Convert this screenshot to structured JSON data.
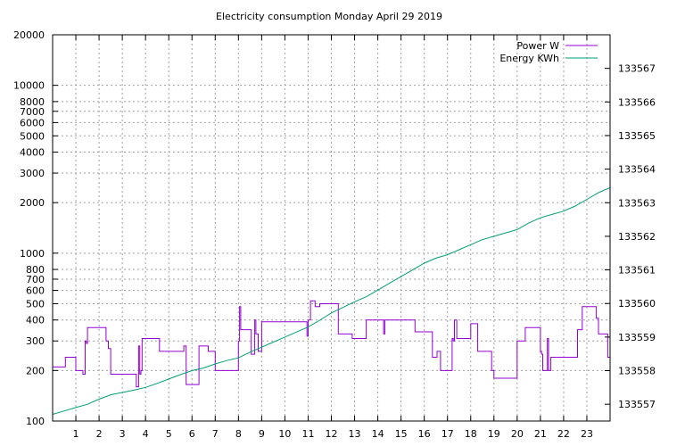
{
  "chart_data": {
    "type": "line",
    "title": "Electricity consumption Monday April 29 2019",
    "xlabel": "",
    "ylabel": "",
    "y2label": "",
    "grid": true,
    "legend_position": "top-right",
    "x_range": [
      0,
      24
    ],
    "y_range": [
      100,
      20000
    ],
    "y_scale": "log",
    "y2_range": [
      133556.5,
      133568.0
    ],
    "x_ticks": [
      1,
      2,
      3,
      4,
      5,
      6,
      7,
      8,
      9,
      10,
      11,
      12,
      13,
      14,
      15,
      16,
      17,
      18,
      19,
      20,
      21,
      22,
      23
    ],
    "y_ticks": [
      {
        "value": 100,
        "label": "100"
      },
      {
        "value": 200,
        "label": "200"
      },
      {
        "value": 300,
        "label": "300"
      },
      {
        "value": 400,
        "label": "400"
      },
      {
        "value": 500,
        "label": "500"
      },
      {
        "value": 600,
        "label": "600"
      },
      {
        "value": 700,
        "label": "700"
      },
      {
        "value": 800,
        "label": "800"
      },
      {
        "value": 1000,
        "label": "1000"
      },
      {
        "value": 2000,
        "label": "2000"
      },
      {
        "value": 3000,
        "label": "3000"
      },
      {
        "value": 4000,
        "label": "4000"
      },
      {
        "value": 5000,
        "label": "5000"
      },
      {
        "value": 6000,
        "label": "6000"
      },
      {
        "value": 7000,
        "label": "7000"
      },
      {
        "value": 8000,
        "label": "8000"
      },
      {
        "value": 10000,
        "label": "10000"
      },
      {
        "value": 20000,
        "label": "20000"
      }
    ],
    "y2_ticks": [
      133557,
      133558,
      133559,
      133560,
      133561,
      133562,
      133563,
      133564,
      133565,
      133566,
      133567
    ],
    "series": [
      {
        "name": "Power W",
        "color": "#9400d3",
        "axis": "y",
        "step": true,
        "x": [
          0,
          0.5,
          0.55,
          0.95,
          1.0,
          1.15,
          1.3,
          1.4,
          1.45,
          1.5,
          2.3,
          2.4,
          2.5,
          3.5,
          3.6,
          3.7,
          3.75,
          3.8,
          3.85,
          4.5,
          4.6,
          4.7,
          5.5,
          5.65,
          5.75,
          6.2,
          6.3,
          6.6,
          6.7,
          7.0,
          7.95,
          8.0,
          8.05,
          8.1,
          8.15,
          8.55,
          8.7,
          8.75,
          8.85,
          9.0,
          10.0,
          10.95,
          11.0,
          11.1,
          11.3,
          11.5,
          12.3,
          12.4,
          12.9,
          13.5,
          14.15,
          14.25,
          14.3,
          15.5,
          15.6,
          16.0,
          16.35,
          16.4,
          16.55,
          16.7,
          17.1,
          17.2,
          17.25,
          17.3,
          17.4,
          17.5,
          17.95,
          18.0,
          18.1,
          18.3,
          18.4,
          18.9,
          18.95,
          19.0,
          19.95,
          20.0,
          20.05,
          20.35,
          20.9,
          21.0,
          21.05,
          21.1,
          21.25,
          21.3,
          21.35,
          21.45,
          21.5,
          22.5,
          22.6,
          22.8,
          22.9,
          23.4,
          23.5,
          23.55,
          23.9,
          24.0
        ],
        "values": [
          210,
          210,
          240,
          240,
          200,
          200,
          190,
          300,
          290,
          360,
          300,
          270,
          190,
          190,
          160,
          280,
          190,
          200,
          310,
          310,
          260,
          260,
          260,
          280,
          165,
          165,
          280,
          280,
          260,
          200,
          200,
          300,
          480,
          350,
          350,
          250,
          400,
          330,
          260,
          390,
          390,
          320,
          400,
          520,
          480,
          500,
          330,
          330,
          310,
          400,
          400,
          330,
          400,
          400,
          340,
          340,
          240,
          240,
          260,
          200,
          200,
          310,
          300,
          400,
          310,
          310,
          310,
          380,
          380,
          260,
          260,
          200,
          200,
          180,
          180,
          300,
          300,
          360,
          360,
          260,
          250,
          200,
          200,
          310,
          200,
          240,
          240,
          240,
          350,
          480,
          480,
          410,
          330,
          330,
          240,
          240
        ]
      },
      {
        "name": "Energy KWh",
        "color": "#009e73",
        "axis": "y2",
        "step": false,
        "x": [
          0,
          0.5,
          1.0,
          1.5,
          2.0,
          2.5,
          3.0,
          3.5,
          4.0,
          4.5,
          5.0,
          5.5,
          6.0,
          6.5,
          7.0,
          7.5,
          8.0,
          8.5,
          9.0,
          9.5,
          10.0,
          10.5,
          11.0,
          11.5,
          12.0,
          12.5,
          13.0,
          13.5,
          14.0,
          14.5,
          15.0,
          15.5,
          16.0,
          16.5,
          17.0,
          17.5,
          18.0,
          18.5,
          19.0,
          19.5,
          20.0,
          20.5,
          21.0,
          21.5,
          22.0,
          22.5,
          23.0,
          23.5,
          24.0
        ],
        "values": [
          133556.7,
          133556.8,
          133556.9,
          133557.0,
          133557.15,
          133557.28,
          133557.35,
          133557.42,
          133557.5,
          133557.62,
          133557.75,
          133557.88,
          133558.0,
          133558.08,
          133558.2,
          133558.3,
          133558.38,
          133558.55,
          133558.7,
          133558.85,
          133559.0,
          133559.15,
          133559.3,
          133559.5,
          133559.72,
          133559.88,
          133560.05,
          133560.2,
          133560.4,
          133560.6,
          133560.8,
          133561.0,
          133561.2,
          133561.35,
          133561.45,
          133561.6,
          133561.75,
          133561.9,
          133562.0,
          133562.1,
          133562.2,
          133562.4,
          133562.55,
          133562.65,
          133562.75,
          133562.9,
          133563.1,
          133563.3,
          133563.45
        ]
      }
    ]
  }
}
